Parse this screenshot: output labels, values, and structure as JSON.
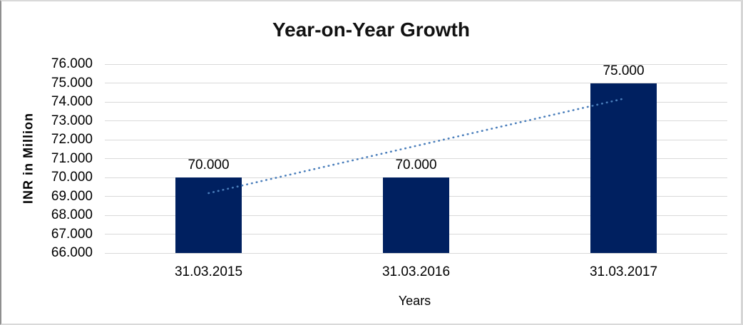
{
  "chart_data": {
    "type": "bar",
    "title": "Year-on-Year Growth",
    "xlabel": "Years",
    "ylabel": "INR in Million",
    "categories": [
      "31.03.2015",
      "31.03.2016",
      "31.03.2017"
    ],
    "values": [
      70,
      70,
      75
    ],
    "value_labels": [
      "70.000",
      "70.000",
      "75.000"
    ],
    "ylim": [
      66,
      76
    ],
    "ytick_step": 1,
    "ytick_labels": [
      "66.000",
      "67.000",
      "68.000",
      "69.000",
      "70.000",
      "71.000",
      "72.000",
      "73.000",
      "74.000",
      "75.000",
      "76.000"
    ],
    "grid": true,
    "legend": "none",
    "trendline": {
      "type": "linear",
      "style": "dotted",
      "start_value": 69.17,
      "end_value": 74.17
    },
    "colors": {
      "bar": "#002060",
      "trendline": "#4a7ebb",
      "gridline": "#d9d9d9",
      "text": "#000000"
    }
  }
}
